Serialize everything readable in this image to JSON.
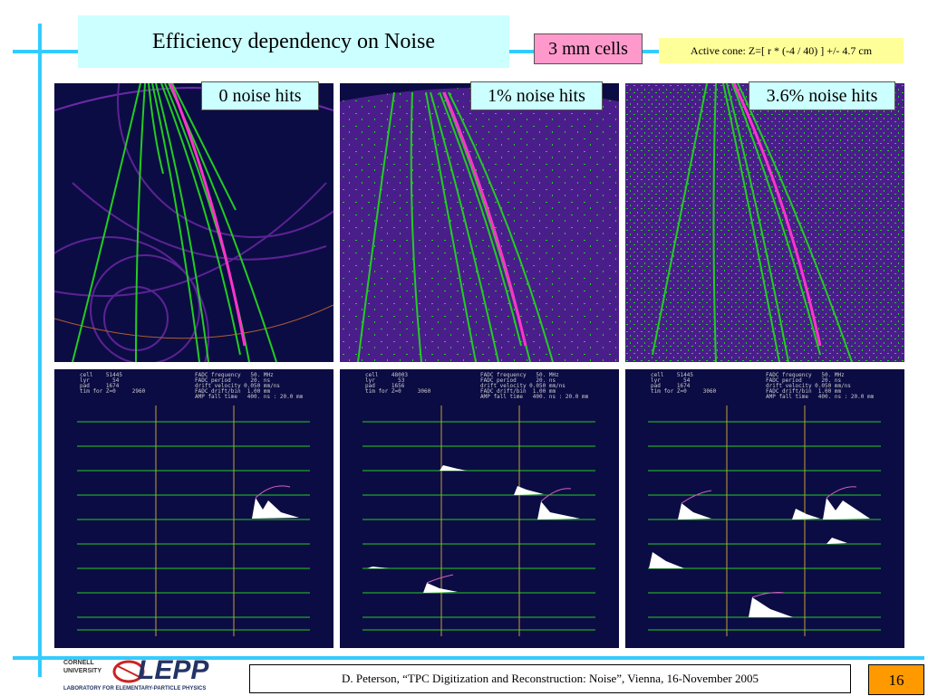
{
  "slide": {
    "title": "Efficiency dependency on Noise",
    "cells_label": "3 mm cells",
    "active_cone": "Active cone:  Z=[ r * (-4 / 40) ]  +/-  4.7 cm",
    "footer": "D. Peterson, “TPC Digitization and Reconstruction: Noise”, Vienna, 16-November 2005",
    "page_number": "16"
  },
  "panels": [
    {
      "label": "0  noise hits"
    },
    {
      "label": "1% noise hits"
    },
    {
      "label": "3.6% noise hits"
    }
  ],
  "logo": {
    "university": "CORNELL UNIVERSITY",
    "name": "LEPP",
    "subtitle": "LABORATORY FOR ELEMENTARY-PARTICLE PHYSICS"
  },
  "fadc_info": [
    {
      "left": [
        "cell    51445",
        "lyr       54",
        "pad     1674",
        "tim for Z=0     2960"
      ],
      "right": [
        "FADC frequency   50. MHz",
        "FADC period      20. ns",
        "drift velocity 0.050 mm/ns",
        "FADC drift/bin  1.00 mm",
        "AMP fall time   400. ns : 20.0 mm"
      ]
    },
    {
      "left": [
        "cell    48003",
        "lyr       53",
        "pad     1656",
        "tim for Z=0     3060"
      ],
      "right": [
        "FADC frequency   50. MHz",
        "FADC period      20. ns",
        "drift velocity 0.050 mm/ns",
        "FADC drift/bin  1.00 mm",
        "AMP fall time   400. ns : 20.0 mm"
      ]
    },
    {
      "left": [
        "cell    51445",
        "lyr       54",
        "pad     1674",
        "tim for Z=0     3060"
      ],
      "right": [
        "FADC frequency   50. MHz",
        "FADC period      20. ns",
        "drift velocity 0.050 mm/ns",
        "FADC drift/bin  1.00 mm",
        "AMP fall time   400. ns : 20.0 mm"
      ]
    }
  ],
  "colors": {
    "track": "#22cc22",
    "selected_track": "#ff33cc",
    "panel_bg": "#0c0c44",
    "noise": "#5a1f96",
    "frame_line": "#33ccff"
  }
}
